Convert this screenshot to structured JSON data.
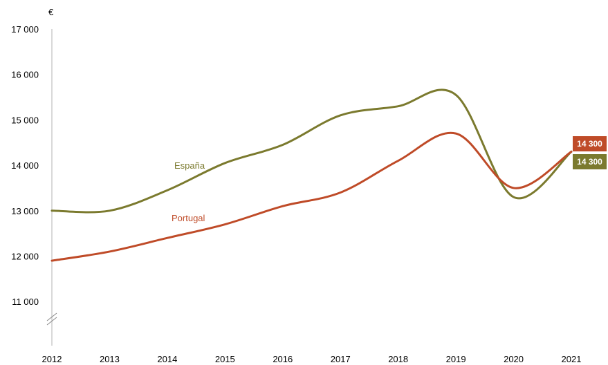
{
  "chart_data": {
    "type": "line",
    "unit": "€",
    "x": [
      "2012",
      "2013",
      "2014",
      "2015",
      "2016",
      "2017",
      "2018",
      "2019",
      "2020",
      "2021"
    ],
    "y_ticks": [
      "11 000",
      "12 000",
      "13 000",
      "14 000",
      "15 000",
      "16 000",
      "17 000"
    ],
    "ylim": [
      10500,
      17000
    ],
    "axis_break": true,
    "grid": false,
    "series": [
      {
        "name": "España",
        "color": "#7b7a2e",
        "values": [
          13000,
          13000,
          13450,
          14050,
          14450,
          15100,
          15300,
          15550,
          13300,
          14300
        ],
        "end_label": "14 300"
      },
      {
        "name": "Portugal",
        "color": "#bf4b28",
        "values": [
          11900,
          12100,
          12400,
          12700,
          13100,
          13400,
          14100,
          14700,
          13500,
          14300
        ],
        "end_label": "14 300"
      }
    ]
  }
}
